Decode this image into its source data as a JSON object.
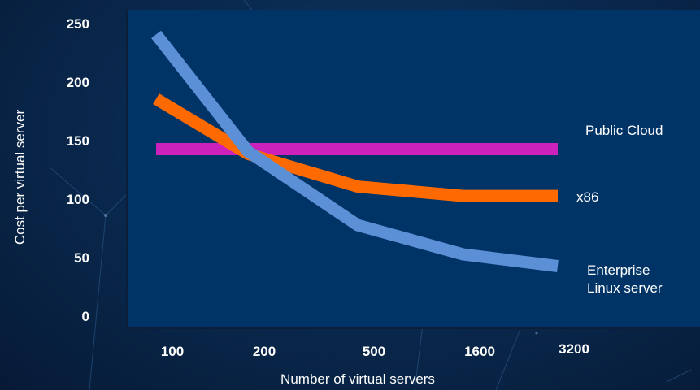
{
  "chart_data": {
    "type": "line",
    "xlabel": "Number of virtual servers",
    "ylabel": "Cost per virtual server",
    "categories": [
      "100",
      "200",
      "500",
      "1600",
      "3200"
    ],
    "ylim": [
      0,
      250
    ],
    "yticks": [
      "0",
      "50",
      "100",
      "150",
      "200",
      "250"
    ],
    "series": [
      {
        "name": "Public Cloud",
        "color": "#cc22bb",
        "values": [
          142,
          142,
          142,
          142,
          142
        ]
      },
      {
        "name": "x86",
        "color": "#ff6a00",
        "values": [
          185,
          138,
          110,
          102,
          102
        ]
      },
      {
        "name": "Enterprise\nLinux server",
        "color": "#5b8fd6",
        "values": [
          240,
          140,
          77,
          52,
          42
        ]
      }
    ],
    "grid": false,
    "legend": "inline-right"
  }
}
